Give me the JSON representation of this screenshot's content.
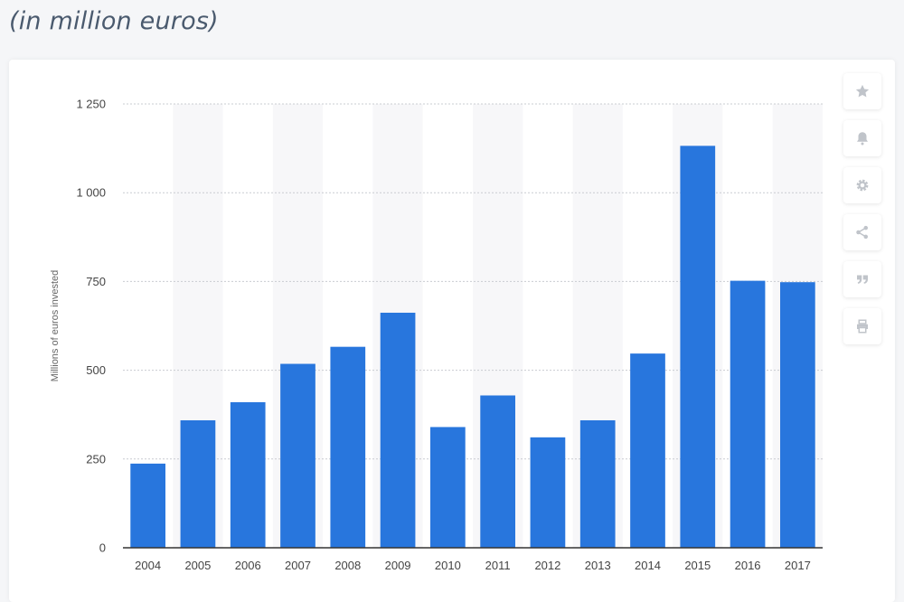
{
  "header": {
    "subtitle": "(in million euros)"
  },
  "toolbar": {
    "buttons": [
      {
        "icon": "star-icon"
      },
      {
        "icon": "bell-icon"
      },
      {
        "icon": "gear-icon"
      },
      {
        "icon": "share-icon"
      },
      {
        "icon": "quote-icon"
      },
      {
        "icon": "print-icon"
      }
    ]
  },
  "colors": {
    "bar": "#2876dd",
    "stripe": "#f7f7f9",
    "grid": "#c9ccd1",
    "axis": "#333333",
    "tick_text": "#444444",
    "icon": "#c0c4ca"
  },
  "chart_data": {
    "type": "bar",
    "title": "",
    "xlabel": "",
    "ylabel": "Millions of euros invested",
    "categories": [
      "2004",
      "2005",
      "2006",
      "2007",
      "2008",
      "2009",
      "2010",
      "2011",
      "2012",
      "2013",
      "2014",
      "2015",
      "2016",
      "2017"
    ],
    "values": [
      237,
      359,
      410,
      518,
      566,
      662,
      340,
      429,
      311,
      359,
      547,
      1132,
      752,
      748
    ],
    "ylim": [
      0,
      1250
    ],
    "yticks": [
      0,
      250,
      500,
      750,
      1000,
      1250
    ],
    "ytick_labels": [
      "0",
      "250",
      "500",
      "750",
      "1 000",
      "1 250"
    ],
    "grid": true,
    "legend": "none"
  }
}
